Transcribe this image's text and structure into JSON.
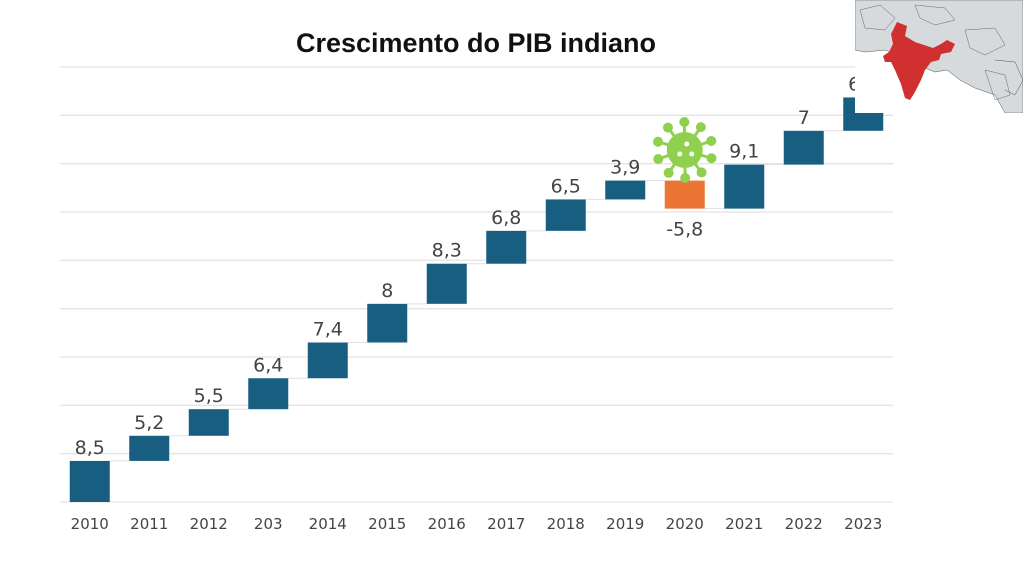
{
  "chart_data": {
    "type": "waterfall",
    "title": "Crescimento do PIB indiano",
    "xlabel": "",
    "ylabel": "",
    "ylim": [
      0,
      90
    ],
    "grid": true,
    "categories": [
      "2010",
      "2011",
      "2012",
      "203",
      "2014",
      "2015",
      "2016",
      "2017",
      "2018",
      "2019",
      "2020",
      "2021",
      "2022",
      "2023"
    ],
    "values": [
      8.5,
      5.2,
      5.5,
      6.4,
      7.4,
      8,
      8.3,
      6.8,
      6.5,
      3.9,
      -5.8,
      9.1,
      7,
      6.9
    ],
    "data_labels": [
      "8,5",
      "5,2",
      "5,5",
      "6,4",
      "7,4",
      "8",
      "8,3",
      "6,8",
      "6,5",
      "3,9",
      "-5,8",
      "9,1",
      "7",
      "6,9"
    ],
    "colors": {
      "increase": "#175e80",
      "decrease": "#ea7535",
      "grid": "#e4e4e4",
      "connector": "#e0e0e0"
    },
    "annotations": [
      {
        "type": "virus-icon",
        "category": "2020",
        "color": "#8fd14f"
      },
      {
        "type": "india-map",
        "position": "top-right",
        "highlight_color": "#d03030"
      }
    ]
  }
}
